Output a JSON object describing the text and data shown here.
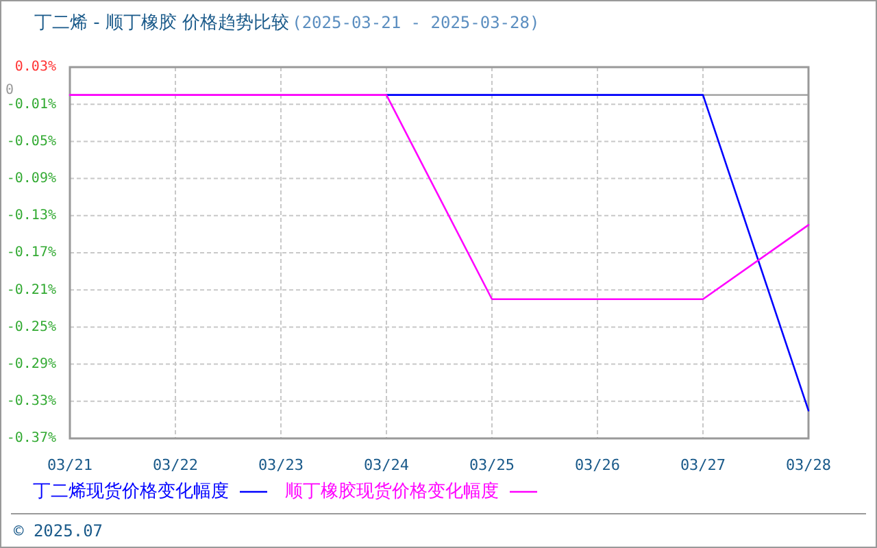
{
  "chart_data": {
    "type": "line",
    "title": "丁二烯 - 顺丁橡胶 价格趋势比较",
    "subtitle": "(2025-03-21 - 2025-03-28)",
    "categories": [
      "03/21",
      "03/22",
      "03/23",
      "03/24",
      "03/25",
      "03/26",
      "03/27",
      "03/28"
    ],
    "series": [
      {
        "name": "丁二烯现货价格变化幅度",
        "color": "#0000ff",
        "values": [
          null,
          null,
          null,
          0,
          0,
          0,
          0,
          -0.34
        ]
      },
      {
        "name": "顺丁橡胶现货价格变化幅度",
        "color": "#ff00ff",
        "values": [
          0,
          0,
          0,
          0,
          -0.22,
          -0.22,
          -0.22,
          -0.14
        ]
      }
    ],
    "ylim": [
      -0.37,
      0.03
    ],
    "yticks": [
      {
        "value": 0.03,
        "label": "0.03%"
      },
      {
        "value": -0.01,
        "label": "-0.01%"
      },
      {
        "value": -0.05,
        "label": "-0.05%"
      },
      {
        "value": -0.09,
        "label": "-0.09%"
      },
      {
        "value": -0.13,
        "label": "-0.13%"
      },
      {
        "value": -0.17,
        "label": "-0.17%"
      },
      {
        "value": -0.21,
        "label": "-0.21%"
      },
      {
        "value": -0.25,
        "label": "-0.25%"
      },
      {
        "value": -0.29,
        "label": "-0.29%"
      },
      {
        "value": -0.33,
        "label": "-0.33%"
      },
      {
        "value": -0.37,
        "label": "-0.37%"
      }
    ],
    "ref_lines": [
      {
        "axis": "y",
        "value": 0,
        "label": "0",
        "color": "#999999"
      }
    ],
    "grid": true,
    "legend": "bottom",
    "annotations": [
      "© 2025.07"
    ]
  }
}
